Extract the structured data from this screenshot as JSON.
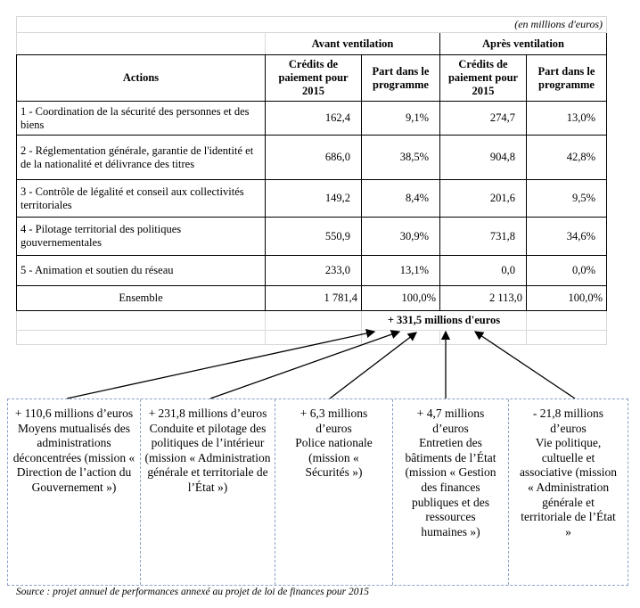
{
  "unit_note": "(en millions d'euros)",
  "headers": {
    "group_before": "Avant ventilation",
    "group_after": "Après ventilation",
    "actions": "Actions",
    "credits": "Crédits de paiement pour 2015",
    "share": "Part dans le programme"
  },
  "rows": [
    {
      "action": "1 - Coordination de la sécurité des personnes et des biens",
      "cp_before": "162,4",
      "pct_before": "9,1%",
      "cp_after": "274,7",
      "pct_after": "13,0%"
    },
    {
      "action": "2 - Réglementation générale, garantie de l'identité et de la nationalité et délivrance des titres",
      "cp_before": "686,0",
      "pct_before": "38,5%",
      "cp_after": "904,8",
      "pct_after": "42,8%"
    },
    {
      "action": "3 - Contrôle de légalité et conseil aux collectivités territoriales",
      "cp_before": "149,2",
      "pct_before": "8,4%",
      "cp_after": "201,6",
      "pct_after": "9,5%"
    },
    {
      "action": "4 - Pilotage territorial des politiques gouvernementales",
      "cp_before": "550,9",
      "pct_before": "30,9%",
      "cp_after": "731,8",
      "pct_after": "34,6%"
    },
    {
      "action": "5 - Animation et soutien du réseau",
      "cp_before": "233,0",
      "pct_before": "13,1%",
      "cp_after": "0,0",
      "pct_after": "0,0%"
    }
  ],
  "total": {
    "label": "Ensemble",
    "cp_before": "1 781,4",
    "pct_before": "100,0%",
    "cp_after": "2 113,0",
    "pct_after": "100,0%"
  },
  "delta": "+ 331,5 millions d'euros",
  "boxes": [
    "+ 110,6 millions d’euros\nMoyens mutualisés des administrations déconcentrées (mission « Direction de l’action du Gouvernement »)",
    "+ 231,8 millions d’euros\nConduite et pilotage des politiques de l’intérieur (mission « Administration générale et territoriale de l’État »)",
    "+ 6,3 millions d’euros\nPolice nationale (mission « Sécurités »)",
    "+ 4,7 millions d’euros\nEntretien des bâtiments de l’État (mission « Gestion des finances publiques et des ressources humaines »)",
    "- 21,8 millions d’euros\nVie politique, cultuelle et associative (mission « Administration générale et territoriale de l’État »"
  ],
  "source": "Source : projet annuel de performances annexé au projet de loi de finances pour 2015"
}
